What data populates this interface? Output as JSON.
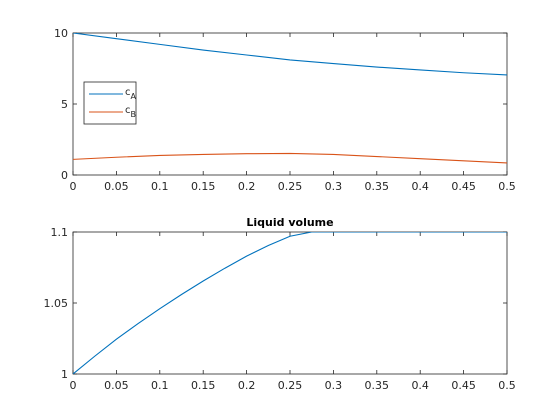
{
  "chart_data": [
    {
      "type": "line",
      "title": "",
      "xlabel": "",
      "ylabel": "",
      "xlim": [
        0,
        0.5
      ],
      "ylim": [
        0,
        10
      ],
      "xticks": [
        0,
        0.05,
        0.1,
        0.15,
        0.2,
        0.25,
        0.3,
        0.35,
        0.4,
        0.45,
        0.5
      ],
      "xtick_labels": [
        "0",
        "0.05",
        "0.1",
        "0.15",
        "0.2",
        "0.25",
        "0.3",
        "0.35",
        "0.4",
        "0.45",
        "0.5"
      ],
      "yticks": [
        0,
        5,
        10
      ],
      "ytick_labels": [
        "0",
        "5",
        "10"
      ],
      "grid": false,
      "legend": {
        "position": "middle-left",
        "entries": [
          {
            "base": "c",
            "sub": "A"
          },
          {
            "base": "c",
            "sub": "B"
          }
        ]
      },
      "series": [
        {
          "name": "cA",
          "color": "#0072bd",
          "x": [
            0,
            0.05,
            0.1,
            0.15,
            0.2,
            0.25,
            0.3,
            0.35,
            0.4,
            0.45,
            0.5
          ],
          "y": [
            10.0,
            9.6,
            9.2,
            8.8,
            8.45,
            8.1,
            7.85,
            7.6,
            7.4,
            7.2,
            7.05
          ]
        },
        {
          "name": "cB",
          "color": "#d95319",
          "x": [
            0,
            0.05,
            0.1,
            0.15,
            0.2,
            0.25,
            0.3,
            0.35,
            0.4,
            0.45,
            0.5
          ],
          "y": [
            1.1,
            1.25,
            1.38,
            1.45,
            1.5,
            1.52,
            1.45,
            1.3,
            1.15,
            1.0,
            0.85
          ]
        }
      ]
    },
    {
      "type": "line",
      "title": "Liquid volume",
      "xlabel": "",
      "ylabel": "",
      "xlim": [
        0,
        0.5
      ],
      "ylim": [
        1,
        1.1
      ],
      "xticks": [
        0,
        0.05,
        0.1,
        0.15,
        0.2,
        0.25,
        0.3,
        0.35,
        0.4,
        0.45,
        0.5
      ],
      "xtick_labels": [
        "0",
        "0.05",
        "0.1",
        "0.15",
        "0.2",
        "0.25",
        "0.3",
        "0.35",
        "0.4",
        "0.45",
        "0.5"
      ],
      "yticks": [
        1,
        1.05,
        1.1
      ],
      "ytick_labels": [
        "1",
        "1.05",
        "1.1"
      ],
      "grid": false,
      "series": [
        {
          "name": "",
          "color": "#0072bd",
          "x": [
            0,
            0.025,
            0.05,
            0.075,
            0.1,
            0.125,
            0.15,
            0.175,
            0.2,
            0.225,
            0.25,
            0.275,
            0.3,
            0.325,
            0.34,
            0.35,
            0.4,
            0.45,
            0.5
          ],
          "y": [
            1.0,
            1.0125,
            1.0245,
            1.0355,
            1.046,
            1.056,
            1.0655,
            1.0745,
            1.083,
            1.0905,
            1.097,
            1.1015,
            1.1055,
            1.1085,
            1.1098,
            1.1,
            1.1,
            1.1,
            1.1
          ]
        }
      ]
    }
  ]
}
